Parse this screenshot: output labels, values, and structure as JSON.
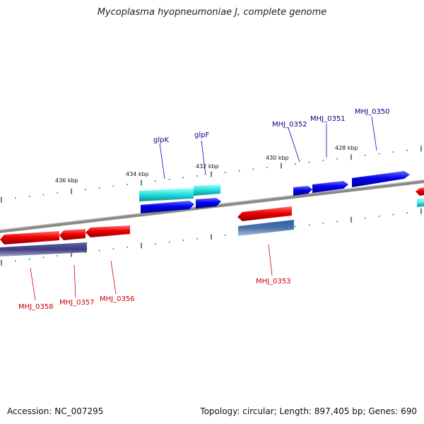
{
  "title": "Mycoplasma hyopneumoniae J, complete genome",
  "footer": {
    "accession": "Accession: NC_007295",
    "stats": "Topology: circular; Length: 897,405 bp; Genes: 690"
  },
  "colors": {
    "forward_gene": "#0000ee",
    "forward_cds": "#1a1aff",
    "forward_cyan": "#22dddd",
    "reverse_gene": "#ee0000",
    "reverse_cds_a": "#3c3c80",
    "reverse_cds_b": "#4a74a8",
    "backbone": "#888888",
    "tick": "#208020",
    "forward_label": "#00008b",
    "reverse_label": "#cc0000"
  },
  "ticks": [
    {
      "label": "436 kbp"
    },
    {
      "label": "434 kbp"
    },
    {
      "label": "432 kbp"
    },
    {
      "label": "430 kbp"
    },
    {
      "label": "428 kbp"
    }
  ],
  "genes_forward": [
    {
      "name": "glpK"
    },
    {
      "name": "glpF"
    },
    {
      "name": "MHJ_0352"
    },
    {
      "name": "MHJ_0351"
    },
    {
      "name": "MHJ_0350"
    }
  ],
  "genes_reverse": [
    {
      "name": "MHJ_0358"
    },
    {
      "name": "MHJ_0357"
    },
    {
      "name": "MHJ_0356"
    },
    {
      "name": "MHJ_0353"
    }
  ]
}
